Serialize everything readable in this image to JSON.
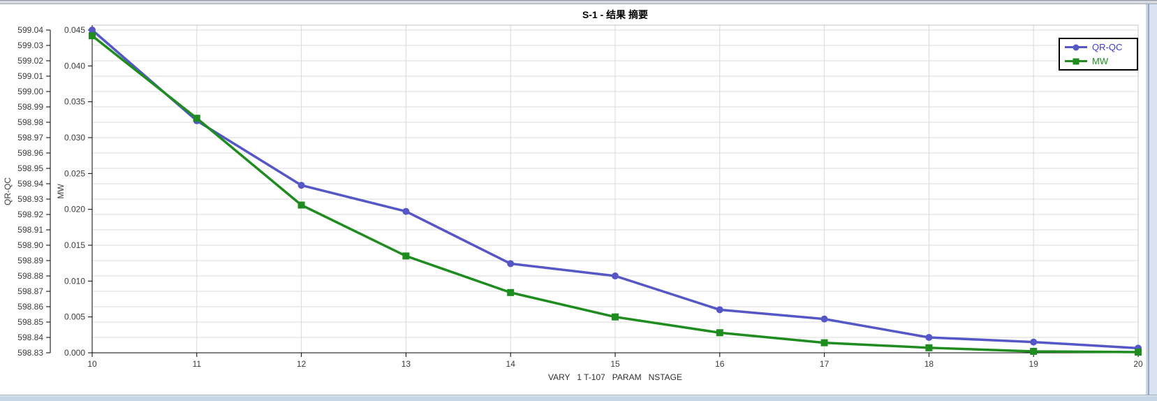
{
  "chart_data": {
    "type": "line",
    "title": "S-1 - 结果 摘要",
    "grid": true,
    "legend_position": "top-right",
    "x_axis": {
      "label": "VARY   1 T-107   PARAM   NSTAGE",
      "range": [
        10,
        20
      ],
      "ticks": [
        10,
        11,
        12,
        13,
        14,
        15,
        16,
        17,
        18,
        19,
        20
      ]
    },
    "y_axes": [
      {
        "label": "QR-QC",
        "range": [
          598.83,
          599.04
        ],
        "ticks": [
          "599.04",
          "599.03",
          "599.02",
          "599.01",
          "599.00",
          "598.99",
          "598.98",
          "598.97",
          "598.96",
          "598.95",
          "598.94",
          "598.93",
          "598.92",
          "598.91",
          "598.90",
          "598.89",
          "598.88",
          "598.87",
          "598.86",
          "598.85",
          "598.84",
          "598.83"
        ]
      },
      {
        "label": "MW",
        "range": [
          0.0,
          0.045
        ],
        "ticks": [
          "0.045",
          "0.040",
          "0.035",
          "0.030",
          "0.025",
          "0.020",
          "0.015",
          "0.010",
          "0.005",
          "0.000"
        ]
      }
    ],
    "x": [
      10,
      11,
      12,
      13,
      14,
      15,
      16,
      17,
      18,
      19,
      20
    ],
    "series": [
      {
        "name": "QR-QC",
        "axis": 0,
        "marker": "circle",
        "color": "#5557C6",
        "text_color": "#3C3CCC",
        "values": [
          599.04,
          598.981,
          598.939,
          598.922,
          598.888,
          598.88,
          598.858,
          598.852,
          598.84,
          598.837,
          598.833
        ]
      },
      {
        "name": "MW",
        "axis": 1,
        "marker": "square",
        "color": "#1F8C1F",
        "text_color": "#1E8E1E",
        "values": [
          0.0442,
          0.0327,
          0.0206,
          0.0135,
          0.0084,
          0.005,
          0.0028,
          0.0014,
          0.0007,
          0.0002,
          0.0001
        ]
      }
    ]
  }
}
